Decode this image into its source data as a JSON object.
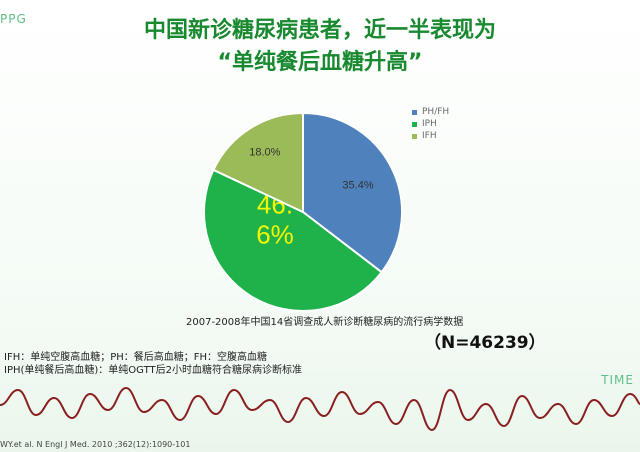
{
  "header": {
    "corner_label": "PPG",
    "title_line1": "中国新诊糖尿病患者，近一半表现为",
    "title_line2": "“单纯餐后血糖升高”"
  },
  "chart_data": {
    "type": "pie",
    "slices": [
      {
        "label": "PH/FH",
        "value": 35.4,
        "display": "35.4%",
        "color": "#4f81bd"
      },
      {
        "label": "IPH",
        "value": 46.6,
        "display": "46.\n6%",
        "color": "#1fb24a"
      },
      {
        "label": "IFH",
        "value": 18.0,
        "display": "18.0%",
        "color": "#9bbb59"
      }
    ],
    "legend_position": "right",
    "start_angle_deg": 0,
    "direction": "clockwise"
  },
  "caption": "2007-2008年中国14省调查成人新诊断糖尿病的流行病学数据",
  "sample_size": "（N=46239）",
  "notes": {
    "line1": "IFH：单纯空腹高血糖；PH：餐后高血糖；FH：空腹高血糖",
    "line2": "IPH(单纯餐后高血糖)：单纯OGTT后2小时血糖符合糖尿病诊断标准"
  },
  "footer": {
    "time_label": "TIME",
    "reference": "WY.et al. N Engl J Med. 2010 ;362(12):1090-101"
  }
}
